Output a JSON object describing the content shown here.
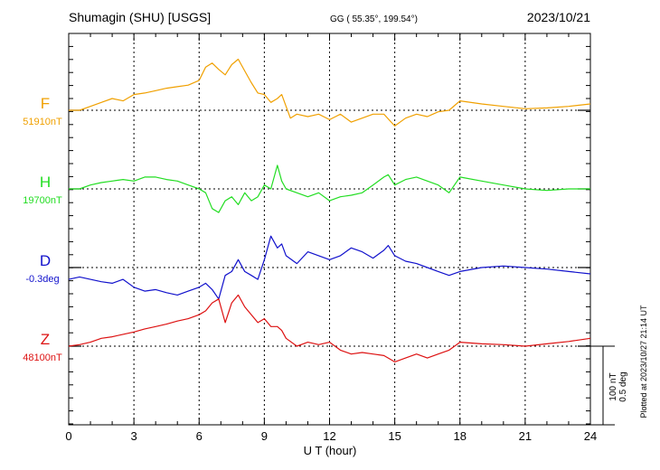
{
  "header": {
    "station": "Shumagin (SHU)  [USGS]",
    "coords": "GG ( 55.35°, 199.54°)",
    "date": "2023/10/21"
  },
  "plotted_note": "Plotted at 2023/10/27 21:14 UT",
  "chart_data": {
    "type": "line",
    "xlabel": "U T (hour)",
    "xlim": [
      0,
      24
    ],
    "xticks": [
      "0",
      "3",
      "6",
      "9",
      "12",
      "15",
      "18",
      "21",
      "24"
    ],
    "grid": true,
    "scale_bar": {
      "label1": "100 nT",
      "label2": "0.5 deg"
    },
    "series": [
      {
        "letter": "F",
        "baseline_label": "51910nT",
        "color": "#f0a000",
        "x": [
          0,
          0.5,
          1,
          1.5,
          2,
          2.5,
          3,
          3.5,
          4,
          4.5,
          5,
          5.5,
          6,
          6.3,
          6.6,
          6.9,
          7.2,
          7.5,
          7.8,
          8.1,
          8.4,
          8.7,
          9,
          9.3,
          9.6,
          9.8,
          10,
          10.2,
          10.5,
          11,
          11.5,
          12,
          12.5,
          13,
          13.5,
          14,
          14.5,
          15,
          15.5,
          16,
          16.5,
          17,
          17.5,
          18,
          19,
          20,
          21,
          22,
          23,
          24
        ],
        "y": [
          0,
          0,
          5,
          10,
          15,
          12,
          20,
          22,
          25,
          28,
          30,
          32,
          38,
          55,
          60,
          52,
          45,
          58,
          65,
          50,
          35,
          22,
          20,
          10,
          15,
          20,
          5,
          -10,
          -5,
          -8,
          -5,
          -12,
          -5,
          -15,
          -10,
          -5,
          -5,
          -20,
          -10,
          -5,
          -8,
          -2,
          0,
          12,
          8,
          5,
          2,
          3,
          5,
          8
        ]
      },
      {
        "letter": "H",
        "baseline_label": "19700nT",
        "color": "#22dd22",
        "x": [
          0,
          0.5,
          1,
          1.5,
          2,
          2.5,
          3,
          3.5,
          4,
          4.5,
          5,
          5.5,
          6,
          6.3,
          6.6,
          6.9,
          7.2,
          7.5,
          7.8,
          8.1,
          8.4,
          8.7,
          9,
          9.3,
          9.6,
          9.8,
          10,
          10.5,
          11,
          11.5,
          12,
          12.5,
          13,
          13.5,
          14,
          14.5,
          14.7,
          15,
          15.5,
          16,
          16.5,
          17,
          17.5,
          18,
          19,
          20,
          21,
          22,
          23,
          24
        ],
        "y": [
          0,
          0,
          5,
          8,
          10,
          12,
          10,
          15,
          15,
          12,
          10,
          5,
          0,
          -5,
          -25,
          -30,
          -15,
          -10,
          -20,
          -5,
          -15,
          -10,
          5,
          0,
          30,
          10,
          0,
          -5,
          -10,
          -5,
          -15,
          -10,
          -8,
          -5,
          5,
          15,
          18,
          5,
          12,
          15,
          10,
          5,
          -5,
          15,
          10,
          5,
          0,
          -2,
          0,
          0
        ]
      },
      {
        "letter": "D",
        "baseline_label": "-0.3deg",
        "color": "#1111cc",
        "x": [
          0,
          0.5,
          1,
          1.5,
          2,
          2.5,
          3,
          3.5,
          4,
          4.5,
          5,
          5.5,
          6,
          6.3,
          6.6,
          6.9,
          7.2,
          7.5,
          7.8,
          8.1,
          8.4,
          8.7,
          9,
          9.3,
          9.6,
          9.8,
          10,
          10.5,
          11,
          11.5,
          12,
          12.5,
          13,
          13.5,
          14,
          14.5,
          14.7,
          15,
          15.5,
          16,
          16.5,
          17,
          17.5,
          18,
          19,
          20,
          21,
          22,
          23,
          24
        ],
        "y": [
          -15,
          -12,
          -15,
          -18,
          -20,
          -15,
          -25,
          -30,
          -28,
          -32,
          -35,
          -30,
          -25,
          -20,
          -28,
          -40,
          -10,
          -5,
          10,
          -5,
          -10,
          -15,
          10,
          40,
          25,
          30,
          15,
          5,
          20,
          15,
          10,
          15,
          25,
          20,
          12,
          22,
          28,
          15,
          8,
          5,
          0,
          -5,
          -10,
          -5,
          0,
          2,
          0,
          -2,
          -5,
          -8
        ]
      },
      {
        "letter": "Z",
        "baseline_label": "48100nT",
        "color": "#dd1111",
        "x": [
          0,
          0.5,
          1,
          1.5,
          2,
          2.5,
          3,
          3.5,
          4,
          4.5,
          5,
          5.5,
          6,
          6.3,
          6.6,
          6.9,
          7.2,
          7.5,
          7.8,
          8.1,
          8.4,
          8.7,
          9,
          9.3,
          9.6,
          9.8,
          10,
          10.5,
          11,
          11.5,
          12,
          12.5,
          13,
          13.5,
          14,
          14.5,
          14.7,
          15,
          15.5,
          16,
          16.5,
          17,
          17.5,
          18,
          19,
          20,
          21,
          22,
          23,
          24
        ],
        "y": [
          0,
          2,
          5,
          10,
          12,
          15,
          18,
          22,
          25,
          28,
          32,
          35,
          40,
          45,
          55,
          60,
          30,
          55,
          65,
          50,
          40,
          30,
          35,
          25,
          25,
          20,
          10,
          0,
          5,
          2,
          5,
          -5,
          -10,
          -8,
          -10,
          -12,
          -15,
          -20,
          -15,
          -10,
          -15,
          -10,
          -5,
          5,
          3,
          2,
          0,
          3,
          6,
          10
        ]
      }
    ]
  }
}
